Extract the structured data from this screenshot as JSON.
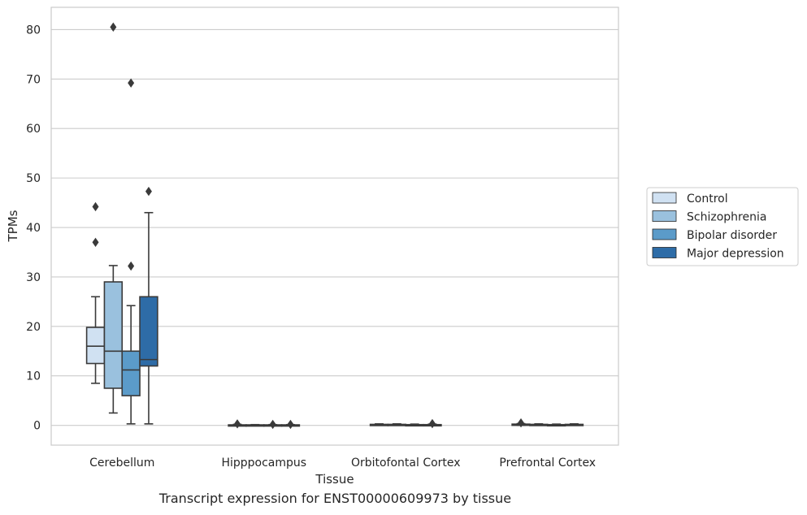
{
  "caption": "Transcript expression for ENST00000609973 by tissue",
  "colors": {
    "background": "#ffffff",
    "grid": "#cccccc",
    "axis_frame": "#cccccc",
    "box_edge": "#3a3a3a",
    "text": "#262626"
  },
  "chart_data": {
    "type": "box",
    "xlabel": "Tissue",
    "ylabel": "TPMs",
    "ylim": [
      -4,
      84.5
    ],
    "yticks": [
      0,
      10,
      20,
      30,
      40,
      50,
      60,
      70,
      80
    ],
    "grid": "horizontal",
    "legend_position": "right (outside plot area)",
    "categories": [
      "Cerebellum",
      "Hipppocampus",
      "Orbitofontal Cortex",
      "Prefrontal Cortex"
    ],
    "series": [
      {
        "name": "Control",
        "color": "#d0e1f2",
        "boxes": [
          {
            "whislo": 8.5,
            "q1": 12.5,
            "med": 16.0,
            "q3": 19.8,
            "whishi": 26.0,
            "fliers": [
              37.0,
              44.2
            ]
          },
          {
            "whislo": 0.0,
            "q1": 0.0,
            "med": 0.05,
            "q3": 0.1,
            "whishi": 0.2,
            "fliers": [
              0.3
            ]
          },
          {
            "whislo": 0.0,
            "q1": 0.05,
            "med": 0.1,
            "q3": 0.2,
            "whishi": 0.3,
            "fliers": []
          },
          {
            "whislo": 0.0,
            "q1": 0.05,
            "med": 0.15,
            "q3": 0.25,
            "whishi": 0.35,
            "fliers": [
              0.5
            ]
          }
        ]
      },
      {
        "name": "Schizophrenia",
        "color": "#9ac1de",
        "boxes": [
          {
            "whislo": 2.5,
            "q1": 7.5,
            "med": 15.0,
            "q3": 29.0,
            "whishi": 32.3,
            "fliers": [
              80.5
            ]
          },
          {
            "whislo": 0.0,
            "q1": 0.0,
            "med": 0.05,
            "q3": 0.1,
            "whishi": 0.15,
            "fliers": []
          },
          {
            "whislo": 0.0,
            "q1": 0.05,
            "med": 0.1,
            "q3": 0.2,
            "whishi": 0.3,
            "fliers": []
          },
          {
            "whislo": 0.0,
            "q1": 0.05,
            "med": 0.1,
            "q3": 0.2,
            "whishi": 0.3,
            "fliers": []
          }
        ]
      },
      {
        "name": "Bipolar disorder",
        "color": "#5b9bc9",
        "boxes": [
          {
            "whislo": 0.3,
            "q1": 6.0,
            "med": 11.2,
            "q3": 15.0,
            "whishi": 24.2,
            "fliers": [
              32.2,
              69.2
            ]
          },
          {
            "whislo": 0.0,
            "q1": 0.0,
            "med": 0.05,
            "q3": 0.1,
            "whishi": 0.15,
            "fliers": [
              0.2
            ]
          },
          {
            "whislo": 0.0,
            "q1": 0.05,
            "med": 0.1,
            "q3": 0.15,
            "whishi": 0.25,
            "fliers": []
          },
          {
            "whislo": 0.0,
            "q1": 0.05,
            "med": 0.1,
            "q3": 0.15,
            "whishi": 0.25,
            "fliers": []
          }
        ]
      },
      {
        "name": "Major depression",
        "color": "#2e6ca7",
        "boxes": [
          {
            "whislo": 0.3,
            "q1": 12.0,
            "med": 13.3,
            "q3": 26.0,
            "whishi": 43.0,
            "fliers": [
              47.3
            ]
          },
          {
            "whislo": 0.0,
            "q1": 0.0,
            "med": 0.05,
            "q3": 0.1,
            "whishi": 0.15,
            "fliers": [
              0.2
            ]
          },
          {
            "whislo": 0.0,
            "q1": 0.05,
            "med": 0.1,
            "q3": 0.15,
            "whishi": 0.25,
            "fliers": [
              0.35
            ]
          },
          {
            "whislo": 0.0,
            "q1": 0.05,
            "med": 0.1,
            "q3": 0.2,
            "whishi": 0.3,
            "fliers": []
          }
        ]
      }
    ]
  }
}
